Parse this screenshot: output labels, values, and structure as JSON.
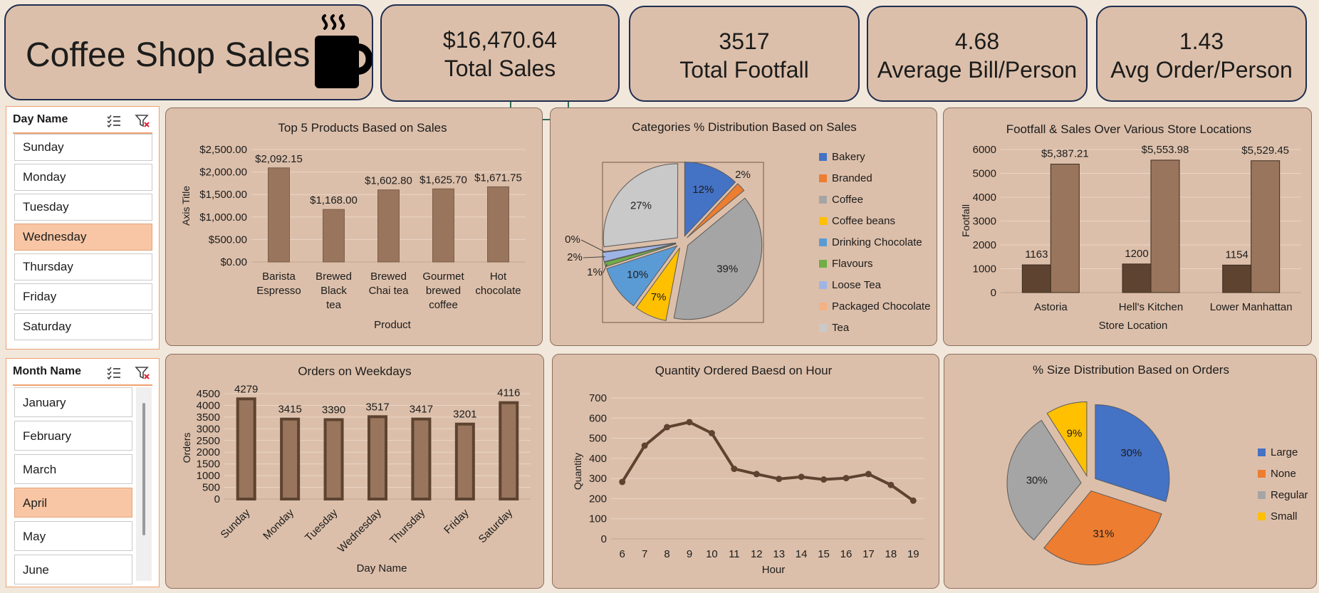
{
  "header": {
    "title": "Coffee Shop Sales",
    "icon": "coffee-mug-icon"
  },
  "kpis": [
    {
      "value": "$16,470.64",
      "label": "Total Sales"
    },
    {
      "value": "3517",
      "label": "Total Footfall"
    },
    {
      "value": "4.68",
      "label": "Average Bill/Person"
    },
    {
      "value": "1.43",
      "label": "Avg Order/Person"
    }
  ],
  "slicers": {
    "day": {
      "title": "Day Name",
      "items": [
        "Sunday",
        "Monday",
        "Tuesday",
        "Wednesday",
        "Thursday",
        "Friday",
        "Saturday"
      ],
      "selected": "Wednesday"
    },
    "month": {
      "title": "Month Name",
      "items": [
        "January",
        "February",
        "March",
        "April",
        "May",
        "June"
      ],
      "selected": "April"
    }
  },
  "colors": {
    "bar": "#98755c",
    "barDark": "#5d4330",
    "accent": "#f8c6a4"
  },
  "chart_data": [
    {
      "id": "top5",
      "type": "bar",
      "title": "Top 5 Products Based on Sales",
      "xlabel": "Product",
      "ylabel": "Axis Title",
      "categories": [
        "Barista Espresso",
        "Brewed Black tea",
        "Brewed Chai tea",
        "Gourmet brewed coffee",
        "Hot chocolate"
      ],
      "values": [
        2092.15,
        1168.0,
        1602.8,
        1625.7,
        1671.75
      ],
      "data_labels": [
        "$2,092.15",
        "$1,168.00",
        "$1,602.80",
        "$1,625.70",
        "$1,671.75"
      ],
      "ylim": [
        0,
        2500
      ],
      "yticks": [
        "$0.00",
        "$500.00",
        "$1,000.00",
        "$1,500.00",
        "$2,000.00",
        "$2,500.00"
      ],
      "grid": true
    },
    {
      "id": "categories",
      "type": "pie",
      "title": "Categories % Distribution Based on Sales",
      "labels": [
        "Bakery",
        "Branded",
        "Coffee",
        "Coffee beans",
        "Drinking Chocolate",
        "Flavours",
        "Loose Tea",
        "Packaged Chocolate",
        "Tea"
      ],
      "values": [
        12,
        2,
        39,
        7,
        10,
        1,
        2,
        0,
        27
      ],
      "data_labels": [
        "12%",
        "2%",
        "39%",
        "7%",
        "10%",
        "1%",
        "2%",
        "0%",
        "27%"
      ],
      "colors": [
        "#4472c4",
        "#ed7d31",
        "#a5a5a5",
        "#ffc000",
        "#5b9bd5",
        "#70ad47",
        "#9fb4e6",
        "#f4b183",
        "#c9c9c9"
      ],
      "legend": "right"
    },
    {
      "id": "locations",
      "type": "bar",
      "title": "Footfall & Sales Over Various Store Locations",
      "xlabel": "Store Location",
      "ylabel": "Footfall",
      "categories": [
        "Astoria",
        "Hell's Kitchen",
        "Lower Manhattan"
      ],
      "series": [
        {
          "values": [
            1163,
            1200,
            1154
          ],
          "data_labels": [
            "1163",
            "1200",
            "1154"
          ]
        },
        {
          "values": [
            5387.21,
            5553.98,
            5529.45
          ],
          "data_labels": [
            "$5,387.21",
            "$5,553.98",
            "$5,529.45"
          ]
        }
      ],
      "ylim": [
        0,
        6000
      ],
      "yticks": [
        "0",
        "1000",
        "2000",
        "3000",
        "4000",
        "5000",
        "6000"
      ],
      "grid": true
    },
    {
      "id": "weekdays",
      "type": "bar",
      "title": "Orders on Weekdays",
      "xlabel": "Day Name",
      "ylabel": "Orders",
      "categories": [
        "Sunday",
        "Monday",
        "Tuesday",
        "Wednesday",
        "Thursday",
        "Friday",
        "Saturday"
      ],
      "values": [
        4279,
        3415,
        3390,
        3517,
        3417,
        3201,
        4116
      ],
      "data_labels": [
        "4279",
        "3415",
        "3390",
        "3517",
        "3417",
        "3201",
        "4116"
      ],
      "ylim": [
        0,
        4500
      ],
      "yticks": [
        "0",
        "500",
        "1000",
        "1500",
        "2000",
        "2500",
        "3000",
        "3500",
        "4000",
        "4500"
      ],
      "grid": true
    },
    {
      "id": "hourly",
      "type": "line",
      "title": "Quantity Ordered Baesd on Hour",
      "xlabel": "Hour",
      "ylabel": "Quantity",
      "x": [
        6,
        7,
        8,
        9,
        10,
        11,
        12,
        13,
        14,
        15,
        16,
        17,
        18,
        19
      ],
      "values": [
        283,
        463,
        555,
        580,
        525,
        348,
        322,
        298,
        308,
        295,
        302,
        322,
        268,
        190
      ],
      "ylim": [
        0,
        700
      ],
      "yticks": [
        "0",
        "100",
        "200",
        "300",
        "400",
        "500",
        "600",
        "700"
      ],
      "xticks": [
        "6",
        "7",
        "8",
        "9",
        "10",
        "11",
        "12",
        "13",
        "14",
        "15",
        "16",
        "17",
        "18",
        "19"
      ],
      "grid": true
    },
    {
      "id": "sizes",
      "type": "pie",
      "title": "% Size Distribution Based on Orders",
      "labels": [
        "Large",
        "None",
        "Regular",
        "Small"
      ],
      "values": [
        30,
        31,
        30,
        9
      ],
      "data_labels": [
        "30%",
        "31%",
        "30%",
        "9%"
      ],
      "colors": [
        "#4472c4",
        "#ed7d31",
        "#a5a5a5",
        "#ffc000"
      ],
      "legend": "right"
    }
  ]
}
